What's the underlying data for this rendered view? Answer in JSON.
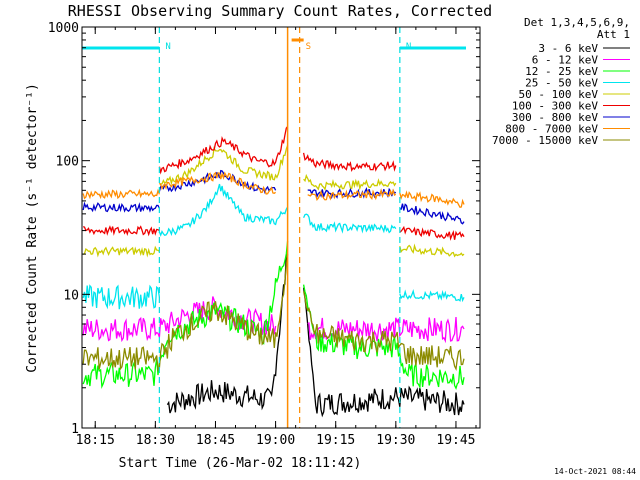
{
  "chart_data": {
    "type": "line",
    "title": "RHESSI Observing Summary Count Rates, Corrected",
    "xlabel": "Start Time (26-Mar-02 18:11:42)",
    "ylabel": "Corrected Count Rate (s⁻¹ detector⁻¹)",
    "y_scale": "log",
    "ylim": [
      1,
      1000
    ],
    "xlim": [
      "18:11:42",
      "19:51:00"
    ],
    "x_ticks": [
      "18:15",
      "18:30",
      "18:45",
      "19:00",
      "19:15",
      "19:30",
      "19:45"
    ],
    "y_ticks": [
      "1",
      "10",
      "100",
      "1000"
    ],
    "legend_header": [
      "Det 1,3,4,5,6,9,",
      "Att 1"
    ],
    "legend_placement": "right",
    "timestamp": "14-Oct-2021 08:44",
    "markers": [
      {
        "label": "N",
        "time": "18:31",
        "color": "#00e0e0"
      },
      {
        "label": "N",
        "time": "19:31",
        "color": "#00e0e0"
      },
      {
        "label": "S",
        "time": "19:06",
        "color": "#ff8c00"
      }
    ],
    "series": [
      {
        "name": "3 - 6 keV",
        "color": "#000000",
        "segments": [
          {
            "t": [
              "18:33",
              "18:45",
              "18:59",
              "19:03"
            ],
            "v": [
              1.5,
              1.9,
              1.6,
              20
            ]
          },
          {
            "t": [
              "19:07",
              "19:10",
              "19:30",
              "19:47"
            ],
            "v": [
              12,
              1.5,
              1.7,
              1.5
            ]
          }
        ]
      },
      {
        "name": "6 - 12 keV",
        "color": "#ff00ff",
        "segments": [
          {
            "t": [
              "18:12",
              "18:31",
              "18:38",
              "18:45",
              "18:52",
              "19:00"
            ],
            "v": [
              5.5,
              5.5,
              7,
              8,
              6.5,
              5.8
            ]
          },
          {
            "t": [
              "19:08",
              "19:15",
              "19:30",
              "19:47"
            ],
            "v": [
              5.6,
              5.5,
              5.5,
              5.5
            ]
          }
        ]
      },
      {
        "name": "12 - 25 keV",
        "color": "#00ff00",
        "segments": [
          {
            "t": [
              "18:12",
              "18:30",
              "18:33",
              "18:45",
              "18:57",
              "19:03"
            ],
            "v": [
              2.5,
              2.5,
              5,
              7.5,
              5,
              25
            ]
          },
          {
            "t": [
              "19:07",
              "19:10",
              "19:20",
              "19:30",
              "19:33",
              "19:47"
            ],
            "v": [
              12,
              4.5,
              4,
              4,
              2.5,
              2.4
            ]
          }
        ]
      },
      {
        "name": "25 - 50 keV",
        "color": "#00e5ee",
        "segments": [
          {
            "t": [
              "18:12",
              "18:31"
            ],
            "v": [
              9.5,
              9.5
            ]
          },
          {
            "t": [
              "18:31",
              "18:38",
              "18:43",
              "18:46",
              "18:52",
              "19:00",
              "19:03"
            ],
            "v": [
              28,
              32,
              45,
              65,
              38,
              35,
              45
            ]
          },
          {
            "t": [
              "19:07",
              "19:10",
              "19:30"
            ],
            "v": [
              40,
              32,
              31
            ]
          },
          {
            "t": [
              "19:31",
              "19:47"
            ],
            "v": [
              10,
              9.5
            ]
          }
        ]
      },
      {
        "name": "50 - 100 keV",
        "color": "#cccc00",
        "segments": [
          {
            "t": [
              "18:12",
              "18:31"
            ],
            "v": [
              21,
              21
            ]
          },
          {
            "t": [
              "18:31",
              "18:38",
              "18:46",
              "18:52",
              "19:00",
              "19:03"
            ],
            "v": [
              65,
              80,
              125,
              85,
              75,
              130
            ]
          },
          {
            "t": [
              "19:07",
              "19:10",
              "19:30"
            ],
            "v": [
              75,
              65,
              68
            ]
          },
          {
            "t": [
              "19:31",
              "19:47"
            ],
            "v": [
              22,
              20
            ]
          }
        ]
      },
      {
        "name": "100 - 300 keV",
        "color": "#ee0000",
        "segments": [
          {
            "t": [
              "18:12",
              "18:31"
            ],
            "v": [
              30,
              30
            ]
          },
          {
            "t": [
              "18:31",
              "18:38",
              "18:47",
              "18:55",
              "19:00",
              "19:03"
            ],
            "v": [
              85,
              100,
              140,
              100,
              95,
              180
            ]
          },
          {
            "t": [
              "19:07",
              "19:10",
              "19:20",
              "19:30"
            ],
            "v": [
              110,
              95,
              90,
              92
            ]
          },
          {
            "t": [
              "19:31",
              "19:47"
            ],
            "v": [
              30,
              27
            ]
          }
        ]
      },
      {
        "name": "300 - 800 keV",
        "color": "#0000cc",
        "segments": [
          {
            "t": [
              "18:12",
              "18:31"
            ],
            "v": [
              45,
              44
            ]
          },
          {
            "t": [
              "18:31",
              "18:40",
              "18:47",
              "18:55",
              "19:00"
            ],
            "v": [
              60,
              70,
              80,
              62,
              60
            ]
          },
          {
            "t": [
              "19:08",
              "19:15",
              "19:30"
            ],
            "v": [
              58,
              57,
              58
            ]
          },
          {
            "t": [
              "19:31",
              "19:40",
              "19:47"
            ],
            "v": [
              45,
              40,
              35
            ]
          }
        ]
      },
      {
        "name": "800 - 7000 keV",
        "color": "#ff8c00",
        "segments": [
          {
            "t": [
              "18:12",
              "18:31"
            ],
            "v": [
              56,
              56
            ]
          },
          {
            "t": [
              "18:31",
              "18:40",
              "18:47",
              "18:55",
              "19:00"
            ],
            "v": [
              65,
              72,
              78,
              62,
              58
            ]
          },
          {
            "t": [
              "19:08",
              "19:15",
              "19:30"
            ],
            "v": [
              54,
              55,
              56
            ]
          },
          {
            "t": [
              "19:31",
              "19:40",
              "19:47"
            ],
            "v": [
              55,
              52,
              47
            ]
          }
        ]
      },
      {
        "name": "7000 - 15000 keV",
        "color": "#8b8b00",
        "segments": [
          {
            "t": [
              "18:12",
              "18:31",
              "18:35",
              "18:45",
              "18:55",
              "19:00",
              "19:03"
            ],
            "v": [
              3.3,
              3.3,
              5,
              7.8,
              5,
              4.5,
              20
            ]
          },
          {
            "t": [
              "19:07",
              "19:10",
              "19:20",
              "19:30",
              "19:33",
              "19:47"
            ],
            "v": [
              10,
              5,
              4.5,
              4.5,
              3.5,
              3.3
            ]
          }
        ]
      }
    ]
  }
}
